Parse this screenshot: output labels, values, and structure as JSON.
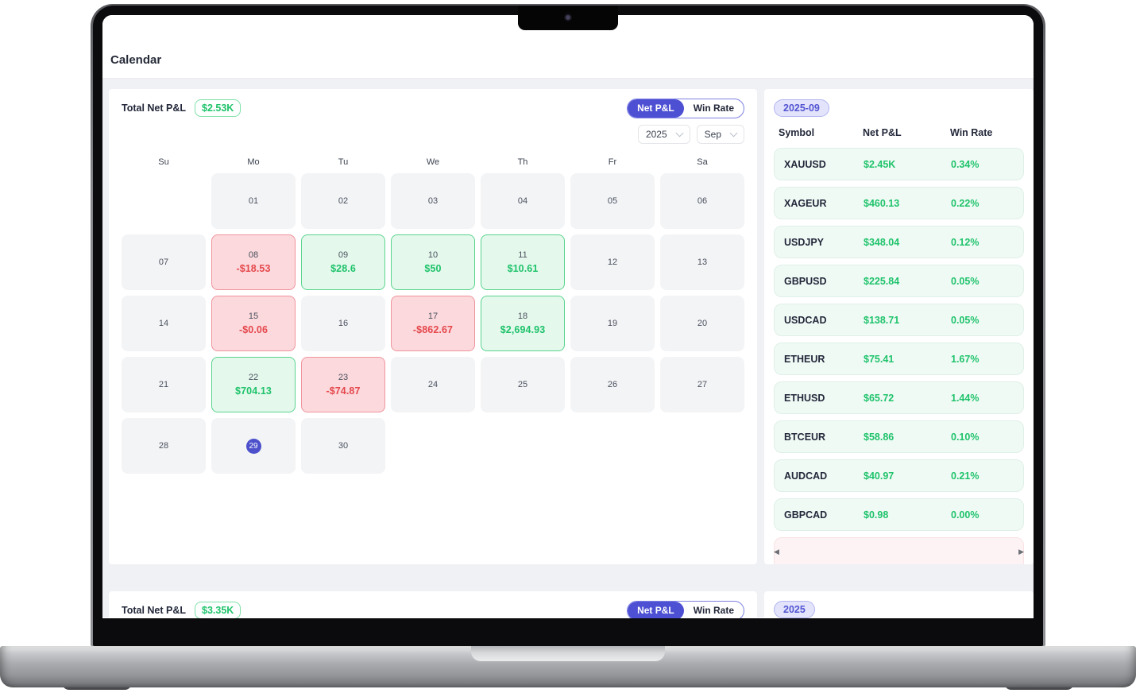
{
  "window": {
    "title": "Calendar"
  },
  "monthly_panel": {
    "total_label": "Total Net P&L",
    "total_value": "$2.53K",
    "toggle": {
      "active": "Net P&L",
      "inactive": "Win Rate"
    },
    "year_select": "2025",
    "month_select": "Sep",
    "weekdays": [
      "Su",
      "Mo",
      "Tu",
      "We",
      "Th",
      "Fr",
      "Sa"
    ],
    "leading_blanks": 1,
    "trailing_blanks": 4,
    "days": [
      {
        "day": "01"
      },
      {
        "day": "02"
      },
      {
        "day": "03"
      },
      {
        "day": "04"
      },
      {
        "day": "05"
      },
      {
        "day": "06"
      },
      {
        "day": "07"
      },
      {
        "day": "08",
        "pnl": "-$18.53",
        "state": "loss"
      },
      {
        "day": "09",
        "pnl": "$28.6",
        "state": "win"
      },
      {
        "day": "10",
        "pnl": "$50",
        "state": "win"
      },
      {
        "day": "11",
        "pnl": "$10.61",
        "state": "win"
      },
      {
        "day": "12"
      },
      {
        "day": "13"
      },
      {
        "day": "14"
      },
      {
        "day": "15",
        "pnl": "-$0.06",
        "state": "loss"
      },
      {
        "day": "16"
      },
      {
        "day": "17",
        "pnl": "-$862.67",
        "state": "loss"
      },
      {
        "day": "18",
        "pnl": "$2,694.93",
        "state": "win"
      },
      {
        "day": "19"
      },
      {
        "day": "20"
      },
      {
        "day": "21"
      },
      {
        "day": "22",
        "pnl": "$704.13",
        "state": "win"
      },
      {
        "day": "23",
        "pnl": "-$74.87",
        "state": "loss"
      },
      {
        "day": "24"
      },
      {
        "day": "25"
      },
      {
        "day": "26"
      },
      {
        "day": "27"
      },
      {
        "day": "28"
      },
      {
        "day": "29",
        "today": true
      },
      {
        "day": "30"
      }
    ]
  },
  "symbols_panel": {
    "period_badge": "2025-09",
    "columns": [
      "Symbol",
      "Net P&L",
      "Win Rate"
    ],
    "rows": [
      {
        "symbol": "XAUUSD",
        "net_pnl": "$2.45K",
        "win_rate": "0.34%"
      },
      {
        "symbol": "XAGEUR",
        "net_pnl": "$460.13",
        "win_rate": "0.22%"
      },
      {
        "symbol": "USDJPY",
        "net_pnl": "$348.04",
        "win_rate": "0.12%"
      },
      {
        "symbol": "GBPUSD",
        "net_pnl": "$225.84",
        "win_rate": "0.05%"
      },
      {
        "symbol": "USDCAD",
        "net_pnl": "$138.71",
        "win_rate": "0.05%"
      },
      {
        "symbol": "ETHEUR",
        "net_pnl": "$75.41",
        "win_rate": "1.67%"
      },
      {
        "symbol": "ETHUSD",
        "net_pnl": "$65.72",
        "win_rate": "1.44%"
      },
      {
        "symbol": "BTCEUR",
        "net_pnl": "$58.86",
        "win_rate": "0.10%"
      },
      {
        "symbol": "AUDCAD",
        "net_pnl": "$40.97",
        "win_rate": "0.21%"
      },
      {
        "symbol": "GBPCAD",
        "net_pnl": "$0.98",
        "win_rate": "0.00%"
      }
    ],
    "has_partial_negative_row": true,
    "scroll_left_glyph": "◀",
    "scroll_right_glyph": "▶"
  },
  "yearly_panel": {
    "total_label": "Total Net P&L",
    "total_value": "$3.35K",
    "toggle": {
      "active": "Net P&L",
      "inactive": "Win Rate"
    },
    "period_badge": "2025"
  },
  "colors": {
    "accent_indigo": "#4d50d3",
    "positive_green": "#1fc36b",
    "negative_red": "#e5484d"
  }
}
